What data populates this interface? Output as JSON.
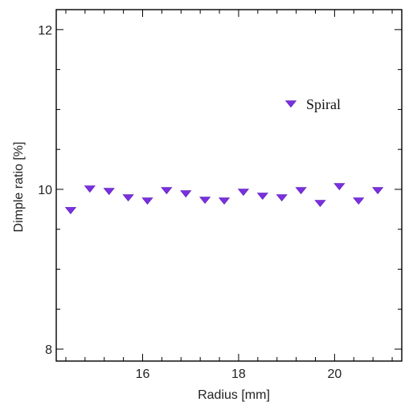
{
  "chart_data": {
    "type": "scatter",
    "title": "",
    "xlabel": "Radius [mm]",
    "ylabel": "Dimple ratio [%]",
    "xlim": [
      14.2,
      21.4
    ],
    "ylim": [
      7.85,
      12.25
    ],
    "grid": false,
    "legend_position": "top-right",
    "series": [
      {
        "name": "Spiral",
        "marker": "triangle-down",
        "color": "#7a2fe0",
        "x": [
          14.5,
          14.9,
          15.3,
          15.7,
          16.1,
          16.5,
          16.9,
          17.3,
          17.7,
          18.1,
          18.5,
          18.9,
          19.3,
          19.7,
          20.1,
          20.5,
          20.9
        ],
        "y": [
          9.74,
          10.01,
          9.98,
          9.9,
          9.86,
          9.99,
          9.95,
          9.87,
          9.86,
          9.97,
          9.92,
          9.9,
          9.99,
          9.83,
          10.04,
          9.86,
          9.99
        ]
      }
    ],
    "x_ticks": [
      {
        "value": 16,
        "label": "16"
      },
      {
        "value": 18,
        "label": "18"
      },
      {
        "value": 20,
        "label": "20"
      }
    ],
    "y_ticks": [
      {
        "value": 8,
        "label": "8"
      },
      {
        "value": 10,
        "label": "10"
      },
      {
        "value": 12,
        "label": "12"
      }
    ],
    "x_minor_step": 0.4,
    "y_minor_step": 0.5
  }
}
